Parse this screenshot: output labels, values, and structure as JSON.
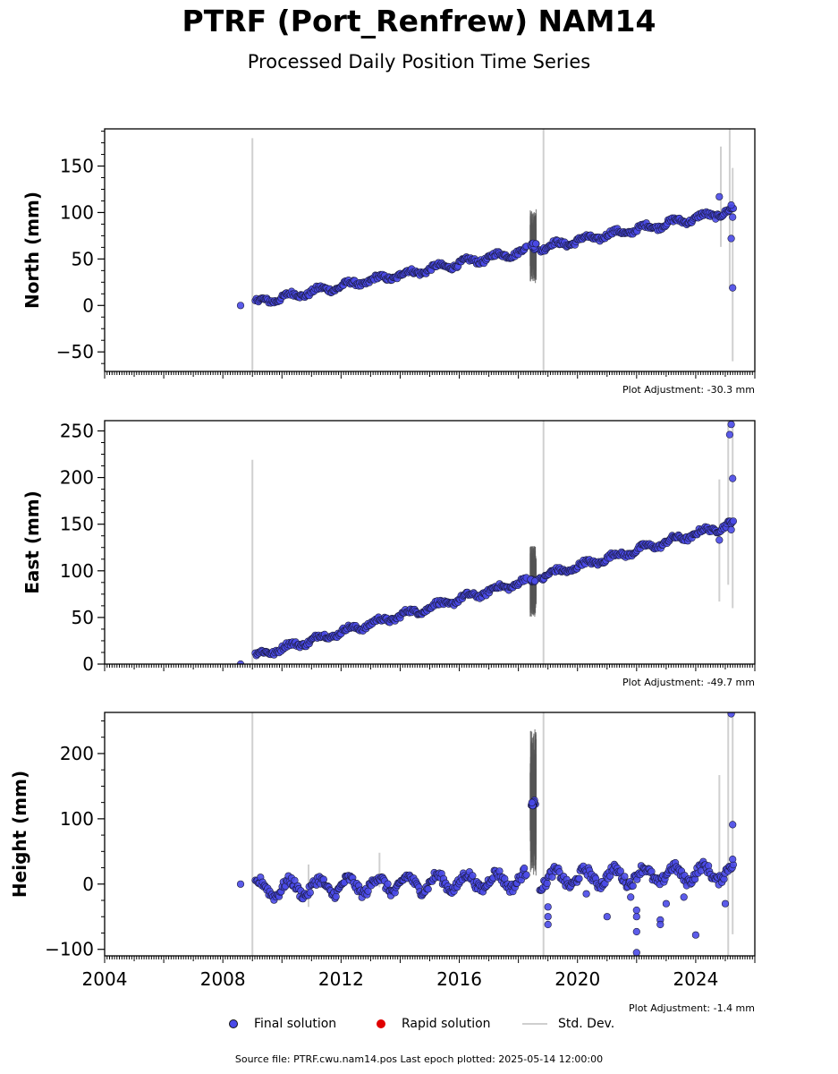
{
  "title": "PTRF (Port_Renfrew) NAM14",
  "subtitle": "Processed Daily Position Time Series",
  "legend": {
    "final": "Final solution",
    "rapid": "Rapid solution",
    "stddev": "Std. Dev."
  },
  "colors": {
    "final": "#4a4ae8",
    "rapid": "#e00000",
    "stddev": "#d0d0d0",
    "offset_errors": "#555555"
  },
  "footer": "Source file: PTRF.cwu.nam14.pos  Last epoch plotted: 2025-05-14 12:00:00",
  "chart_data": [
    {
      "type": "scatter",
      "ylabel": "North (mm)",
      "adjustment": "Plot Adjustment: -30.3 mm",
      "xlim": [
        2004.0,
        2026.0
      ],
      "ylim": [
        -71,
        190
      ],
      "yticks": [
        -50,
        0,
        50,
        100,
        150
      ],
      "ytick_labels": [
        "−50",
        "0",
        "50",
        "100",
        "150"
      ],
      "xticks": [
        2004,
        2008,
        2012,
        2016,
        2020,
        2024
      ],
      "xtick_labels": [
        "",
        "",
        "",
        "",
        "",
        ""
      ],
      "trend": {
        "x": [
          2009.1,
          2025.3
        ],
        "y": [
          3,
          102
        ]
      },
      "noise": 2.5,
      "seasonal": 3,
      "offset_gap": {
        "x": [
          2018.4,
          2018.6
        ],
        "y": [
          60,
          67
        ],
        "spread": 38
      },
      "extra_points": [
        {
          "x": 2008.6,
          "y": 0
        },
        {
          "x": 2024.8,
          "y": 117
        },
        {
          "x": 2025.2,
          "y": 108
        },
        {
          "x": 2025.25,
          "y": 95
        },
        {
          "x": 2025.2,
          "y": 72
        },
        {
          "x": 2025.25,
          "y": 19
        }
      ],
      "errorbars": [
        {
          "x": 2009.0,
          "ylo": -71,
          "yhi": 180
        },
        {
          "x": 2018.85,
          "ylo": -71,
          "yhi": 190
        },
        {
          "x": 2024.85,
          "ylo": 63,
          "yhi": 171
        },
        {
          "x": 2025.15,
          "ylo": 18,
          "yhi": 190
        },
        {
          "x": 2025.25,
          "ylo": -60,
          "yhi": 148
        }
      ]
    },
    {
      "type": "scatter",
      "ylabel": "East (mm)",
      "adjustment": "Plot Adjustment: -49.7 mm",
      "xlim": [
        2004.0,
        2026.0
      ],
      "ylim": [
        0,
        261
      ],
      "yticks": [
        0,
        50,
        100,
        150,
        200,
        250
      ],
      "ytick_labels": [
        "0",
        "50",
        "100",
        "150",
        "200",
        "250"
      ],
      "xticks": [
        2004,
        2008,
        2012,
        2016,
        2020,
        2024
      ],
      "xtick_labels": [
        "",
        "",
        "",
        "",
        "",
        ""
      ],
      "trend": {
        "x": [
          2009.1,
          2025.3
        ],
        "y": [
          9,
          151
        ]
      },
      "noise": 2.5,
      "seasonal": 3,
      "offset_gap": {
        "x": [
          2018.4,
          2018.6
        ],
        "y": [
          88,
          91
        ],
        "spread": 38
      },
      "extra_points": [
        {
          "x": 2008.6,
          "y": 0
        },
        {
          "x": 2024.8,
          "y": 133
        },
        {
          "x": 2025.2,
          "y": 257
        },
        {
          "x": 2025.15,
          "y": 246
        },
        {
          "x": 2025.25,
          "y": 199
        },
        {
          "x": 2025.2,
          "y": 144
        }
      ],
      "errorbars": [
        {
          "x": 2009.0,
          "ylo": 0,
          "yhi": 219
        },
        {
          "x": 2018.85,
          "ylo": 0,
          "yhi": 261
        },
        {
          "x": 2024.8,
          "ylo": 67,
          "yhi": 198
        },
        {
          "x": 2025.1,
          "ylo": 85,
          "yhi": 261
        },
        {
          "x": 2025.25,
          "ylo": 60,
          "yhi": 261
        }
      ]
    },
    {
      "type": "scatter",
      "ylabel": "Height (mm)",
      "adjustment": "Plot Adjustment: -1.4 mm",
      "xlim": [
        2004.0,
        2026.0
      ],
      "ylim": [
        -110,
        263
      ],
      "yticks": [
        -100,
        0,
        100,
        200
      ],
      "ytick_labels": [
        "−100",
        "0",
        "100",
        "200"
      ],
      "xticks": [
        2004,
        2008,
        2012,
        2016,
        2020,
        2024
      ],
      "xtick_labels": [
        "2004",
        "2008",
        "2012",
        "2016",
        "2020",
        "2024"
      ],
      "trend": {
        "x": [
          2009.1,
          2025.3
        ],
        "y": [
          -8,
          18
        ]
      },
      "noise": 7,
      "seasonal": 12,
      "offset_gap": {
        "x": [
          2018.4,
          2018.6
        ],
        "y": [
          120,
          130
        ],
        "spread": 110
      },
      "extra_points": [
        {
          "x": 2008.6,
          "y": 0
        },
        {
          "x": 2019.0,
          "y": -35
        },
        {
          "x": 2019.0,
          "y": -50
        },
        {
          "x": 2019.0,
          "y": -62
        },
        {
          "x": 2020.3,
          "y": -15
        },
        {
          "x": 2021.0,
          "y": -50
        },
        {
          "x": 2021.8,
          "y": -20
        },
        {
          "x": 2022.0,
          "y": -50
        },
        {
          "x": 2022.0,
          "y": -73
        },
        {
          "x": 2022.0,
          "y": -105
        },
        {
          "x": 2022.0,
          "y": -40
        },
        {
          "x": 2022.8,
          "y": -55
        },
        {
          "x": 2022.8,
          "y": -62
        },
        {
          "x": 2023.0,
          "y": -30
        },
        {
          "x": 2023.6,
          "y": -20
        },
        {
          "x": 2024.0,
          "y": -78
        },
        {
          "x": 2025.0,
          "y": -30
        },
        {
          "x": 2025.2,
          "y": 261
        },
        {
          "x": 2025.25,
          "y": 91
        },
        {
          "x": 2025.25,
          "y": 38
        }
      ],
      "errorbars": [
        {
          "x": 2009.0,
          "ylo": -110,
          "yhi": 263
        },
        {
          "x": 2018.85,
          "ylo": -110,
          "yhi": 263
        },
        {
          "x": 2024.8,
          "ylo": 0,
          "yhi": 167
        },
        {
          "x": 2025.1,
          "ylo": -110,
          "yhi": 263
        },
        {
          "x": 2025.25,
          "ylo": -77,
          "yhi": 263
        },
        {
          "x": 2010.9,
          "ylo": -35,
          "yhi": 30
        },
        {
          "x": 2013.3,
          "ylo": -5,
          "yhi": 48
        }
      ]
    }
  ]
}
